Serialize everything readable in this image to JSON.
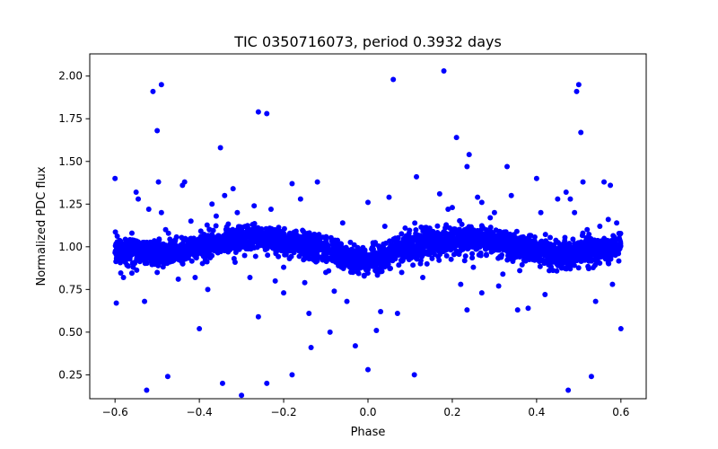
{
  "chart_data": {
    "type": "scatter",
    "title": "TIC 0350716073, period 0.3932 days",
    "xlabel": "Phase",
    "ylabel": "Normalized PDC flux",
    "xlim": [
      -0.66,
      0.66
    ],
    "ylim": [
      0.11,
      2.13
    ],
    "xticks": [
      -0.6,
      -0.4,
      -0.2,
      0.0,
      0.2,
      0.4,
      0.6
    ],
    "xtick_labels": [
      "−0.6",
      "−0.4",
      "−0.2",
      "0.0",
      "0.2",
      "0.4",
      "0.6"
    ],
    "yticks": [
      0.25,
      0.5,
      0.75,
      1.0,
      1.25,
      1.5,
      1.75,
      2.0
    ],
    "ytick_labels": [
      "0.25",
      "0.50",
      "0.75",
      "1.00",
      "1.25",
      "1.50",
      "1.75",
      "2.00"
    ],
    "grid": false,
    "marker_color": "#0000ff",
    "series": [
      {
        "name": "",
        "points": [
          [
            -0.6,
            1.4
          ],
          [
            -0.597,
            0.67
          ],
          [
            -0.525,
            0.16
          ],
          [
            -0.56,
            1.08
          ],
          [
            -0.55,
            1.32
          ],
          [
            -0.545,
            1.28
          ],
          [
            -0.51,
            1.91
          ],
          [
            -0.49,
            1.95
          ],
          [
            -0.5,
            1.68
          ],
          [
            -0.497,
            1.38
          ],
          [
            -0.49,
            1.2
          ],
          [
            -0.53,
            0.68
          ],
          [
            -0.5,
            0.85
          ],
          [
            -0.475,
            0.24
          ],
          [
            -0.44,
            1.36
          ],
          [
            -0.435,
            1.38
          ],
          [
            -0.42,
            1.15
          ],
          [
            -0.4,
            0.52
          ],
          [
            -0.37,
            1.25
          ],
          [
            -0.35,
            1.58
          ],
          [
            -0.345,
            0.2
          ],
          [
            -0.34,
            1.3
          ],
          [
            -0.32,
            1.34
          ],
          [
            -0.3,
            0.13
          ],
          [
            -0.26,
            1.79
          ],
          [
            -0.24,
            1.78
          ],
          [
            -0.26,
            0.59
          ],
          [
            -0.24,
            0.2
          ],
          [
            -0.28,
            0.82
          ],
          [
            -0.22,
            0.8
          ],
          [
            -0.2,
            0.73
          ],
          [
            -0.18,
            1.37
          ],
          [
            -0.18,
            0.25
          ],
          [
            -0.16,
            1.28
          ],
          [
            -0.14,
            0.61
          ],
          [
            -0.135,
            0.41
          ],
          [
            -0.12,
            1.38
          ],
          [
            -0.1,
            0.85
          ],
          [
            -0.09,
            0.5
          ],
          [
            -0.08,
            0.74
          ],
          [
            -0.05,
            0.68
          ],
          [
            -0.03,
            0.42
          ],
          [
            -0.01,
            0.88
          ],
          [
            0.0,
            0.28
          ],
          [
            0.0,
            1.26
          ],
          [
            0.02,
            0.51
          ],
          [
            0.03,
            0.62
          ],
          [
            0.05,
            1.29
          ],
          [
            0.06,
            1.98
          ],
          [
            0.07,
            0.61
          ],
          [
            0.11,
            0.25
          ],
          [
            0.115,
            1.41
          ],
          [
            0.17,
            1.31
          ],
          [
            0.18,
            2.03
          ],
          [
            0.2,
            1.23
          ],
          [
            0.22,
            0.78
          ],
          [
            0.21,
            1.64
          ],
          [
            0.24,
            1.54
          ],
          [
            0.235,
            1.47
          ],
          [
            0.235,
            0.63
          ],
          [
            0.26,
            1.29
          ],
          [
            0.27,
            0.73
          ],
          [
            0.29,
            1.17
          ],
          [
            0.31,
            0.77
          ],
          [
            0.33,
            1.47
          ],
          [
            0.34,
            1.3
          ],
          [
            0.355,
            0.63
          ],
          [
            0.38,
            0.64
          ],
          [
            0.4,
            1.4
          ],
          [
            0.41,
            1.2
          ],
          [
            0.42,
            0.72
          ],
          [
            0.45,
            1.28
          ],
          [
            0.47,
            1.32
          ],
          [
            0.475,
            0.16
          ],
          [
            0.48,
            1.28
          ],
          [
            0.49,
            1.2
          ],
          [
            0.495,
            1.91
          ],
          [
            0.5,
            1.95
          ],
          [
            0.505,
            1.67
          ],
          [
            0.51,
            1.38
          ],
          [
            0.53,
            0.24
          ],
          [
            0.54,
            0.68
          ],
          [
            0.56,
            1.38
          ],
          [
            0.57,
            1.16
          ],
          [
            0.575,
            1.36
          ],
          [
            0.58,
            0.78
          ],
          [
            0.6,
            0.52
          ],
          [
            0.59,
            1.14
          ],
          [
            -0.58,
            0.82
          ],
          [
            -0.45,
            0.81
          ],
          [
            -0.41,
            0.82
          ],
          [
            -0.38,
            0.75
          ],
          [
            -0.15,
            0.79
          ],
          [
            0.08,
            0.85
          ],
          [
            0.13,
            0.82
          ],
          [
            0.25,
            0.88
          ],
          [
            0.32,
            0.84
          ],
          [
            0.36,
            0.86
          ],
          [
            0.43,
            0.86
          ],
          [
            -0.23,
            1.22
          ],
          [
            -0.27,
            1.24
          ],
          [
            -0.31,
            1.2
          ],
          [
            -0.36,
            1.18
          ],
          [
            -0.06,
            1.14
          ],
          [
            0.04,
            1.12
          ],
          [
            0.19,
            1.22
          ],
          [
            0.27,
            1.26
          ],
          [
            0.3,
            1.2
          ],
          [
            -0.52,
            1.22
          ],
          [
            -0.48,
            1.1
          ],
          [
            0.52,
            1.1
          ],
          [
            0.55,
            1.12
          ],
          [
            -0.2,
            0.88
          ],
          [
            0.14,
            0.9
          ]
        ]
      }
    ]
  }
}
